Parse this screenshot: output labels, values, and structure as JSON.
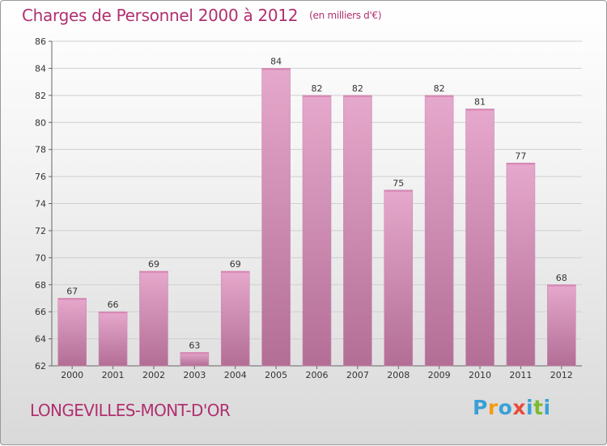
{
  "title": "Charges de Personnel 2000 à 2012",
  "unit_note": "(en milliers d'€)",
  "town": "LONGEVILLES-MONT-D'OR",
  "logo": {
    "letters": [
      "P",
      "r",
      "o",
      "x",
      "i",
      "t",
      "i"
    ],
    "colors": [
      "#3aa0d8",
      "#f39c12",
      "#3aa0d8",
      "#e74c3c",
      "#3aa0d8",
      "#7dbb2f",
      "#3aa0d8"
    ]
  },
  "colors": {
    "bar_light": "#e6a8cc",
    "bar_dark": "#b36e95",
    "title": "#b0306f"
  },
  "chart_data": {
    "type": "bar",
    "categories": [
      "2000",
      "2001",
      "2002",
      "2003",
      "2004",
      "2005",
      "2006",
      "2007",
      "2008",
      "2009",
      "2010",
      "2011",
      "2012"
    ],
    "values": [
      67,
      66,
      69,
      63,
      69,
      84,
      82,
      82,
      75,
      82,
      81,
      77,
      68
    ],
    "ylim": [
      62,
      86
    ],
    "yticks": [
      62,
      64,
      66,
      68,
      70,
      72,
      74,
      76,
      78,
      80,
      82,
      84,
      86
    ],
    "grid": true
  }
}
